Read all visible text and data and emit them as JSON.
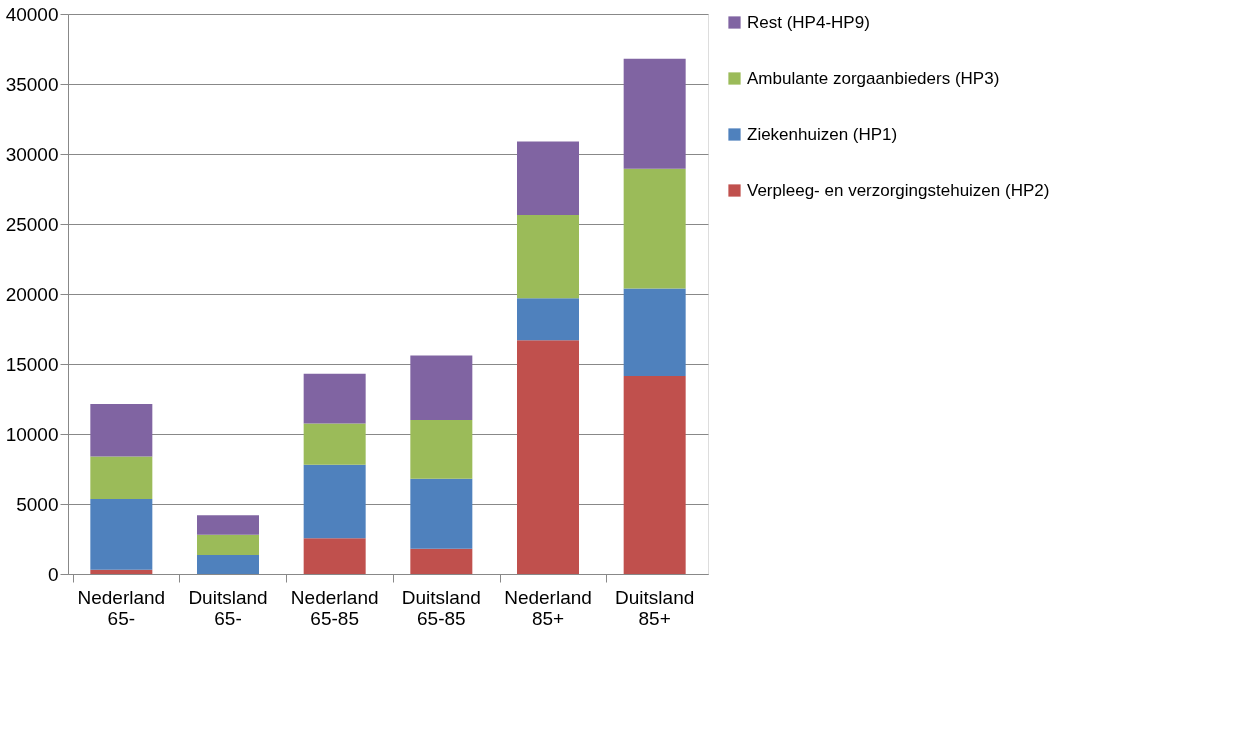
{
  "chart_data": {
    "type": "bar",
    "stacked": true,
    "categories": [
      "Nederland 65-",
      "Duitsland 65-",
      "Nederland 65-85",
      "Duitsland 65-85",
      "Nederland 85+",
      "Duitsland 85+"
    ],
    "series": [
      {
        "name": "Verpleeg- en verzorgingstehuizen (HP2)",
        "color": "#c0504d",
        "values": [
          300,
          0,
          2550,
          1800,
          16700,
          14150
        ]
      },
      {
        "name": "Ziekenhuizen (HP1)",
        "color": "#4f81bd",
        "values": [
          5050,
          1350,
          5250,
          5000,
          3000,
          6250
        ]
      },
      {
        "name": "Ambulante zorgaanbieders (HP3)",
        "color": "#9bbb59",
        "values": [
          3050,
          1450,
          2950,
          4200,
          5950,
          8550
        ]
      },
      {
        "name": "Rest (HP4-HP9)",
        "color": "#8064a2",
        "values": [
          3750,
          1400,
          3550,
          4600,
          5250,
          7850
        ]
      }
    ],
    "ylim": [
      0,
      40000
    ],
    "yticks": [
      0,
      5000,
      10000,
      15000,
      20000,
      25000,
      30000,
      35000,
      40000
    ],
    "grid": "y",
    "legend": "right"
  }
}
